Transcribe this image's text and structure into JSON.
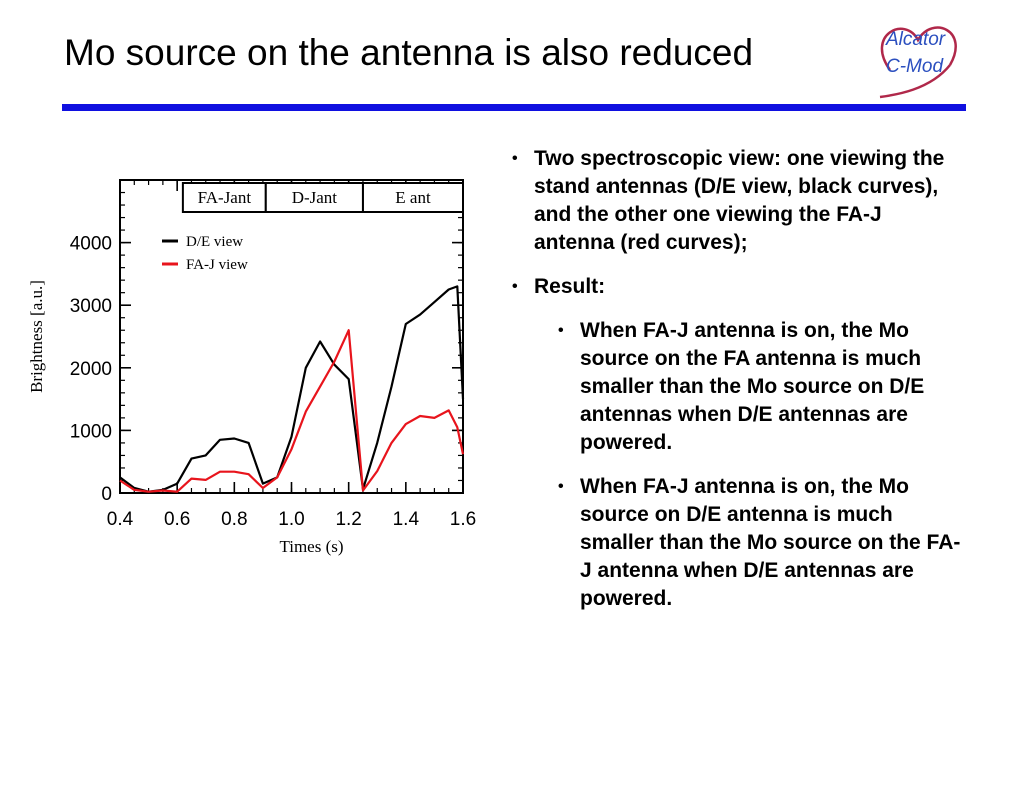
{
  "slide": {
    "title": "Mo source on the antenna is also reduced",
    "logo_line1": "Alcator",
    "logo_line2": "C-Mod",
    "bullets": [
      {
        "text": "Two spectroscopic view: one viewing the stand antennas (D/E view, black curves), and the other one viewing the FA-J antenna (red curves);"
      },
      {
        "text": "Result:"
      }
    ],
    "sub_bullets": [
      {
        "text": "When FA-J antenna is on, the Mo source on the FA antenna is much smaller than the Mo source on D/E antennas when D/E antennas are powered."
      },
      {
        "text": "When FA-J antenna is on, the Mo source on D/E antenna is much smaller than the Mo source on the FA-J antenna when D/E antennas are powered."
      }
    ],
    "bullet_glyph": "•"
  },
  "colors": {
    "rule": "#1010e0",
    "logo_text": "#2b4fbf",
    "logo_heart": "#b0284a",
    "de_series": "#000000",
    "faj_series": "#e8141c"
  },
  "chart_data": {
    "type": "line",
    "xlabel": "Times (s)",
    "ylabel": "Brightness [a.u.]",
    "xlim": [
      0.4,
      1.6
    ],
    "ylim": [
      0,
      5000
    ],
    "xticks": [
      "0.4",
      "0.6",
      "0.8",
      "1.0",
      "1.2",
      "1.4",
      "1.6"
    ],
    "yticks": [
      "0",
      "1000",
      "2000",
      "3000",
      "4000"
    ],
    "antenna_boxes": [
      {
        "label": "FA-Jant",
        "x0": 0.62,
        "x1": 0.91
      },
      {
        "label": "D-Jant",
        "x0": 0.91,
        "x1": 1.25
      },
      {
        "label": "E ant",
        "x0": 1.25,
        "x1": 1.6
      }
    ],
    "legend_position": "top-left",
    "series": [
      {
        "name": "D/E view",
        "color": "#000000",
        "x": [
          0.4,
          0.45,
          0.5,
          0.55,
          0.6,
          0.65,
          0.7,
          0.75,
          0.8,
          0.85,
          0.9,
          0.95,
          1.0,
          1.05,
          1.1,
          1.15,
          1.2,
          1.25,
          1.3,
          1.35,
          1.4,
          1.45,
          1.5,
          1.55,
          1.58,
          1.6
        ],
        "y": [
          250,
          80,
          20,
          50,
          150,
          550,
          600,
          850,
          870,
          800,
          150,
          250,
          900,
          2000,
          2420,
          2050,
          1820,
          60,
          800,
          1700,
          2700,
          2850,
          3050,
          3250,
          3300,
          1500
        ]
      },
      {
        "name": "FA-J view",
        "color": "#e8141c",
        "x": [
          0.4,
          0.45,
          0.5,
          0.55,
          0.6,
          0.65,
          0.7,
          0.75,
          0.8,
          0.85,
          0.9,
          0.95,
          1.0,
          1.05,
          1.1,
          1.15,
          1.2,
          1.25,
          1.3,
          1.35,
          1.4,
          1.45,
          1.5,
          1.55,
          1.58,
          1.6
        ],
        "y": [
          200,
          50,
          20,
          40,
          20,
          230,
          210,
          340,
          340,
          300,
          80,
          250,
          700,
          1300,
          1700,
          2100,
          2600,
          40,
          350,
          800,
          1100,
          1230,
          1200,
          1320,
          1050,
          620
        ]
      }
    ]
  }
}
